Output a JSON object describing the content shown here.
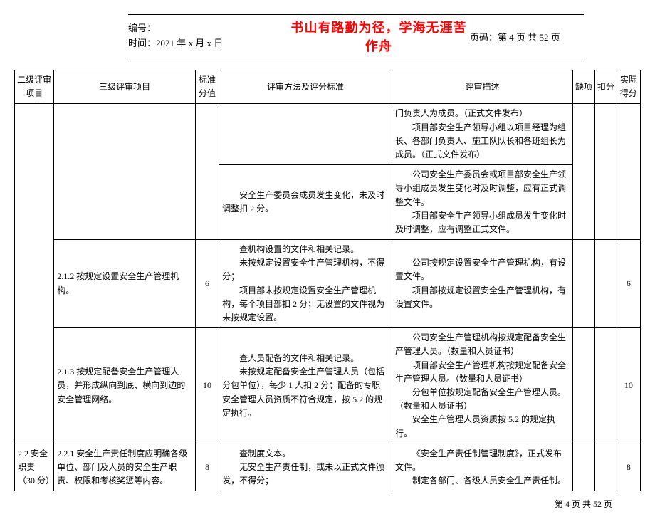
{
  "header": {
    "serial_label": "编号：",
    "time_label": "时间：2021 年 x 月 x 日",
    "motto": "书山有路勤为径，学海无涯苦作舟",
    "page_label": "页码：第 4 页  共 52 页"
  },
  "columns": {
    "c1": "二级评审项目",
    "c2": "三级评审项目",
    "c3": "标准分值",
    "c4": "评审方法及评分标准",
    "c5": "评审描述",
    "c6": "缺项",
    "c7": "扣分",
    "c8": "实际得分"
  },
  "rows": {
    "r1": {
      "desc1": "门负责人为成员。（正式文件发布）",
      "desc2": "项目部安全生产领导小组以项目经理为组长、各部门负责人、施工队队长和各班组长为成员。（正式文件发布）"
    },
    "r2": {
      "method": "安全生产委员会成员发生变化，未及时调整扣 2 分。",
      "desc1": "公司安全生产委员会或项目部安全生产领导小组成员发生变化时及时调整，应有正式调整文件。",
      "desc2": "项目部安全生产领导小组成员发生变化时及时调整，应有调整正式文件。"
    },
    "r3": {
      "l3": "2.1.2 按规定设置安全生产管理机构。",
      "score": "6",
      "method1": "查机构设置的文件和相关记录。",
      "method2": "未按规定设置安全生产管理机构，不得分；",
      "method3": "项目部未按规定设置安全生产管理机构，每个项目部扣 2 分；无设置的文件视为未按规定设置。",
      "desc1": "公司按规定设置安全生产管理机构，有设置文件。",
      "desc2": "项目部按规定设置安全生产管理机构，有设置文件。",
      "actual": "6"
    },
    "r4": {
      "l3": "2.1.3 按规定配备安全生产管理人员，并形成纵向到底、横向到边的安全管理网络。",
      "score": "10",
      "method1": "查人员配备的文件和相关记录。",
      "method2": "未按规定配备安全生产管理人员（包括分包单位），每少 1 人扣 2 分；配备的专职安全管理人员资质不符合规定，按 5.2 的规定执行。",
      "desc1": "公司安全生产管理机构按规定配备安全生产管理人员。（数量和人员证书）",
      "desc2": "项目部安全生产管理机构按规定配备安全生产管理人员。（数量和人员证书）",
      "desc3": "分包单位按规定配备安全生产管理人员。（数量和人员证书）",
      "desc4": "安全生产管理人员资质按 5.2 的规定执行。",
      "actual": "10"
    },
    "r5": {
      "l2a": "2.2 安全职责（30 分）",
      "l3": "2.2.1 安全生产责任制度应明确各级单位、部门及人员的安全生产职责、权限和考核奖惩等内容。",
      "score": "8",
      "method1": "查制度文本。",
      "method2": "无安全生产责任制，或未以正式文件颁发，不得分；",
      "desc1": "《安全生产责任制管理制度》，正式发布文件。",
      "desc2": "制定各部门、各级人员安全生产责任制。",
      "actual": "8"
    }
  },
  "footer": "第 4 页  共 52 页"
}
